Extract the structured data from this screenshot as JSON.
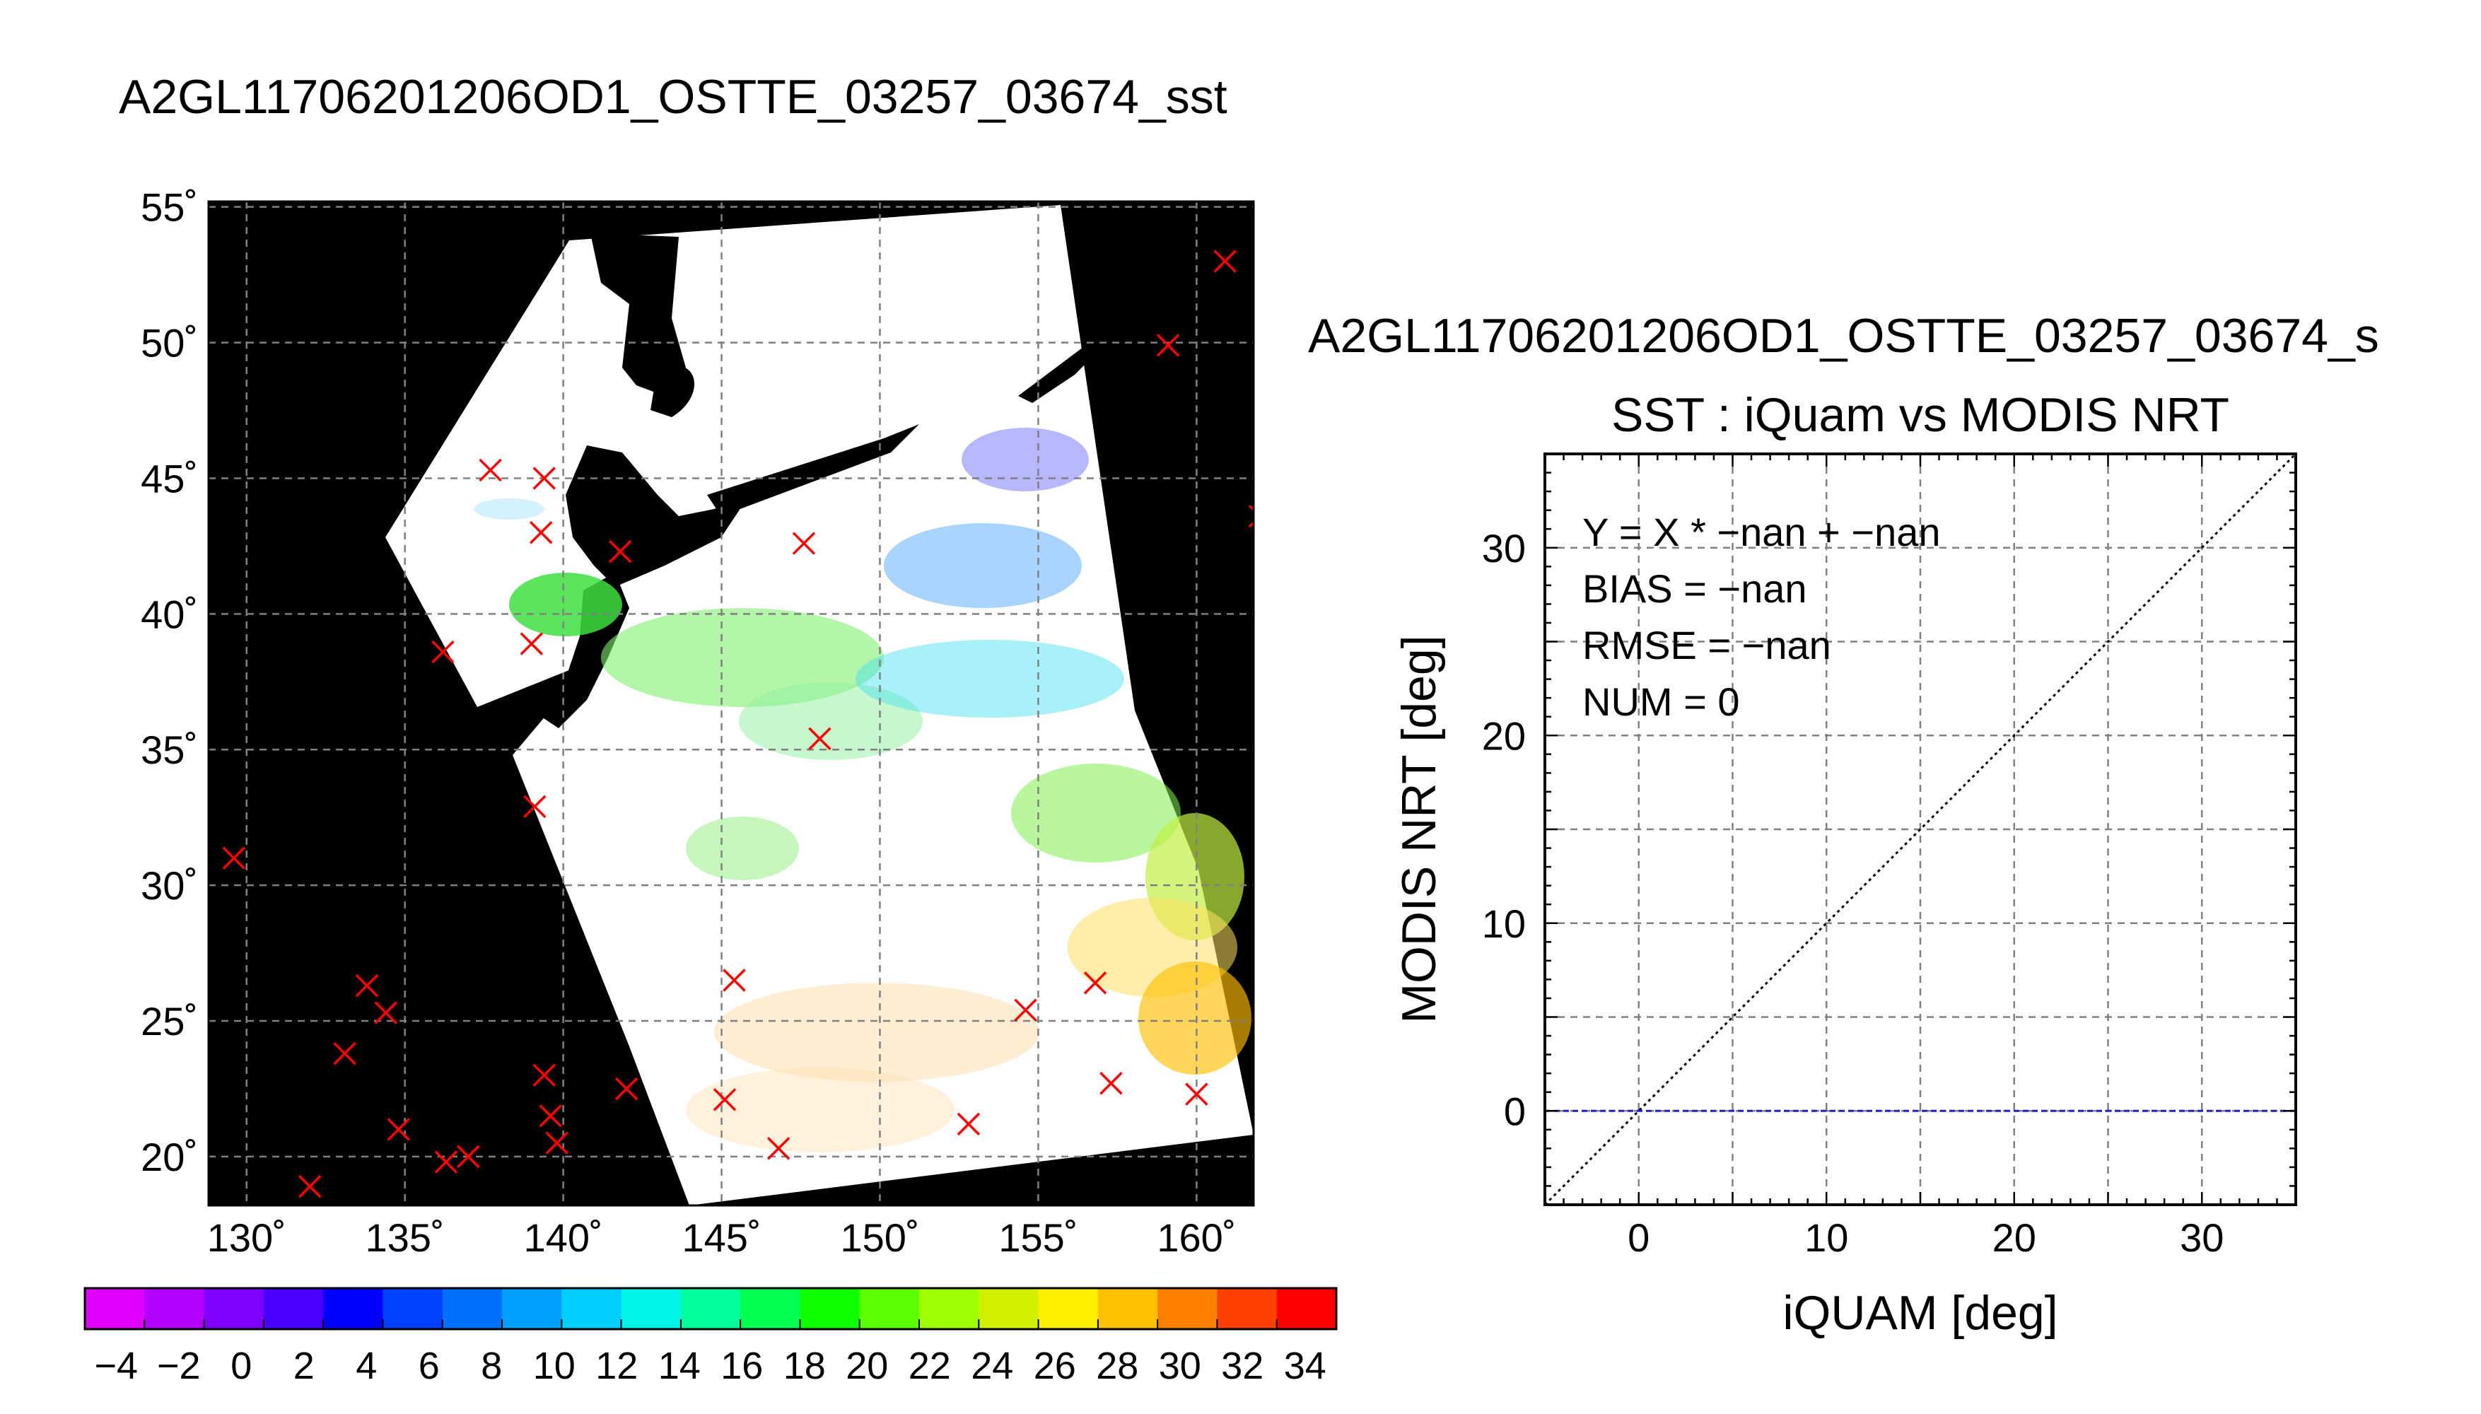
{
  "figure_title": "A2GL11706201206OD1_OSTTE_03257_03674_sst",
  "chart_data": [
    {
      "type": "map",
      "title": "",
      "lon_ticks": [
        "130˚",
        "135˚",
        "140˚",
        "145˚",
        "150˚",
        "155˚",
        "160˚"
      ],
      "lat_ticks": [
        "55˚",
        "50˚",
        "45˚",
        "40˚",
        "35˚",
        "30˚",
        "25˚",
        "20˚"
      ],
      "lon_range": [
        128.8,
        161.8
      ],
      "lat_range": [
        18.2,
        55.2
      ],
      "background_color": "#000000",
      "swath_color": "#ffffff",
      "grid": true,
      "iquam_marker": "x",
      "iquam_marker_color": "#ff0000",
      "iquam_points": [
        {
          "lon": 160.9,
          "lat": 53.0
        },
        {
          "lon": 159.1,
          "lat": 49.9
        },
        {
          "lon": 137.7,
          "lat": 45.3
        },
        {
          "lon": 139.4,
          "lat": 45.0
        },
        {
          "lon": 162.0,
          "lat": 43.6
        },
        {
          "lon": 139.3,
          "lat": 43.0
        },
        {
          "lon": 147.6,
          "lat": 42.6
        },
        {
          "lon": 141.8,
          "lat": 42.3
        },
        {
          "lon": 139.0,
          "lat": 38.9
        },
        {
          "lon": 136.2,
          "lat": 38.6
        },
        {
          "lon": 148.1,
          "lat": 35.4
        },
        {
          "lon": 139.1,
          "lat": 32.9
        },
        {
          "lon": 129.6,
          "lat": 31.0
        },
        {
          "lon": 145.4,
          "lat": 26.5
        },
        {
          "lon": 156.8,
          "lat": 26.4
        },
        {
          "lon": 133.8,
          "lat": 26.3
        },
        {
          "lon": 134.4,
          "lat": 25.3
        },
        {
          "lon": 154.6,
          "lat": 25.4
        },
        {
          "lon": 133.1,
          "lat": 23.8
        },
        {
          "lon": 139.4,
          "lat": 23.0
        },
        {
          "lon": 157.3,
          "lat": 22.7
        },
        {
          "lon": 142.0,
          "lat": 22.5
        },
        {
          "lon": 160.0,
          "lat": 22.3
        },
        {
          "lon": 145.1,
          "lat": 22.1
        },
        {
          "lon": 139.6,
          "lat": 21.5
        },
        {
          "lon": 152.8,
          "lat": 21.2
        },
        {
          "lon": 134.8,
          "lat": 21.0
        },
        {
          "lon": 139.8,
          "lat": 20.5
        },
        {
          "lon": 146.8,
          "lat": 20.3
        },
        {
          "lon": 137.0,
          "lat": 20.0
        },
        {
          "lon": 136.3,
          "lat": 19.8
        },
        {
          "lon": 132.0,
          "lat": 18.9
        }
      ]
    },
    {
      "type": "colorbar",
      "ticks": [
        "−4",
        "−2",
        "0",
        "2",
        "4",
        "6",
        "8",
        "10",
        "12",
        "14",
        "16",
        "18",
        "20",
        "22",
        "24",
        "26",
        "28",
        "30",
        "32",
        "34"
      ],
      "range": [
        -5,
        35
      ],
      "bin_width": 2,
      "colors": [
        "#e000ff",
        "#b400ff",
        "#8000ff",
        "#4a00ff",
        "#0000ff",
        "#0040ff",
        "#0070ff",
        "#00a0ff",
        "#00d0ff",
        "#00f5e6",
        "#00ff9a",
        "#00ff50",
        "#10ff00",
        "#5aff00",
        "#a0ff00",
        "#d0f000",
        "#fff000",
        "#ffc000",
        "#ff8000",
        "#ff4000",
        "#ff0000"
      ]
    },
    {
      "type": "scatter",
      "title": "A2GL11706201206OD1_OSTTE_03257_03674_s",
      "subtitle": "SST : iQuam vs MODIS NRT",
      "xlabel": "iQUAM [deg]",
      "ylabel": "MODIS NRT [deg]",
      "xlim": [
        -5,
        35
      ],
      "ylim": [
        -5,
        35
      ],
      "x_ticks": [
        0,
        10,
        20,
        30
      ],
      "y_ticks": [
        0,
        10,
        20,
        30
      ],
      "grid": true,
      "stats": [
        "Y = X * −nan + −nan",
        "BIAS = −nan",
        "RMSE = −nan",
        "NUM = 0"
      ],
      "series": [
        {
          "type": "line",
          "style": "dotted",
          "color": "#000000",
          "x": [
            -5,
            35
          ],
          "y": [
            -5,
            35
          ]
        },
        {
          "type": "line",
          "style": "dashed",
          "color": "#2020c0",
          "x": [
            -5,
            35
          ],
          "y": [
            0,
            0
          ]
        }
      ],
      "points": []
    }
  ]
}
